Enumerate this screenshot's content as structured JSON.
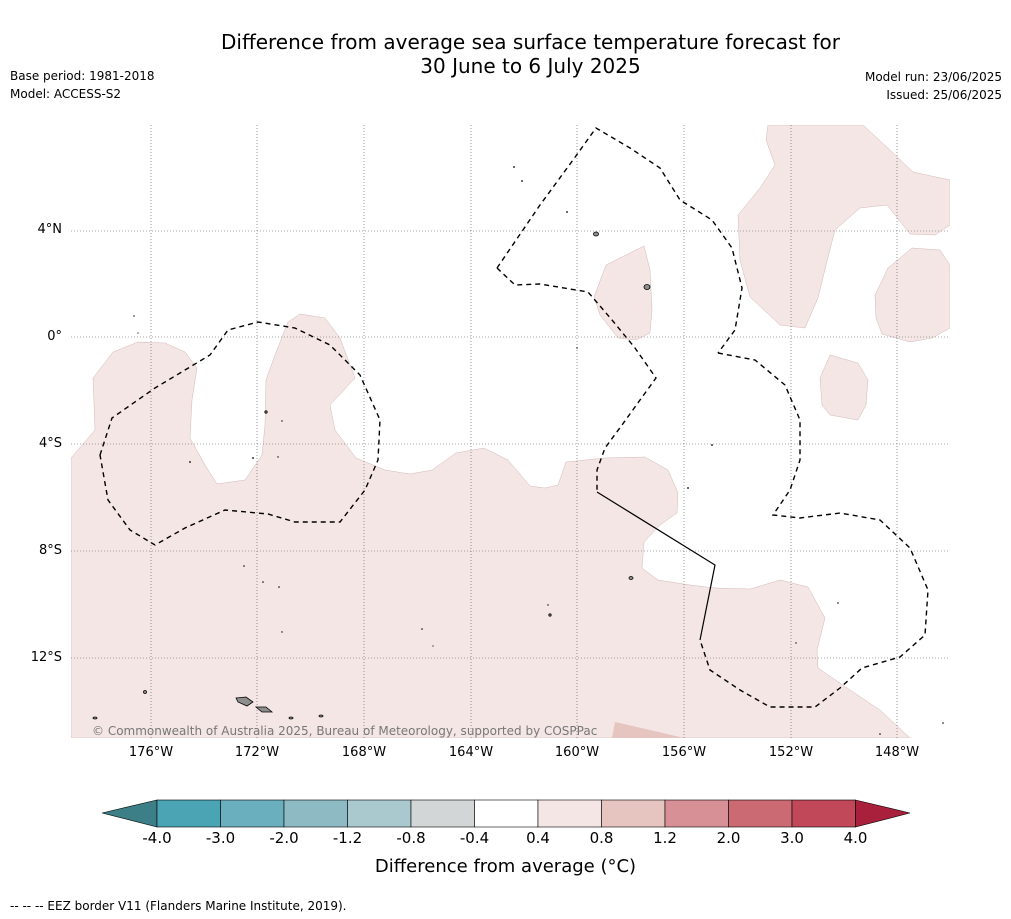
{
  "title_line1": "Difference from average sea surface temperature forecast for",
  "title_line2": "30 June to 6 July 2025",
  "meta_left": [
    "Base period: 1981-2018",
    "Model: ACCESS-S2"
  ],
  "meta_right": [
    "Model run: 23/06/2025",
    "Issued: 25/06/2025"
  ],
  "lat_labels": [
    "4°N",
    "0°",
    "4°S",
    "8°S",
    "12°S"
  ],
  "lon_labels": [
    "176°W",
    "172°W",
    "168°W",
    "164°W",
    "160°W",
    "156°W",
    "152°W",
    "148°W"
  ],
  "copyright": "© Commonwealth of Australia 2025, Bureau of Meteorology, supported by COSPPac",
  "colorbar": {
    "ticks": [
      "-4.0",
      "-3.0",
      "-2.0",
      "-1.2",
      "-0.8",
      "-0.4",
      "0.4",
      "0.8",
      "1.2",
      "2.0",
      "3.0",
      "4.0"
    ],
    "colors": [
      "#3d7f87",
      "#4aa4b4",
      "#6aafbe",
      "#8ebac4",
      "#a9c9ce",
      "#d3d6d6",
      "#ffffff",
      "#f4e6e4",
      "#e6c4bf",
      "#d69096",
      "#cc6a73",
      "#c04858",
      "#a8203c"
    ],
    "title": "Difference from average (°C)"
  },
  "footnote": "--  --  -- EEZ border V11 (Flanders Marine Institute, 2019).",
  "colors": {
    "anomaly_0_4_to_0_8": "#f4e6e4",
    "anomaly_0_8_to_1_2": "#e6c4bf",
    "land": "#8e8e8e"
  }
}
